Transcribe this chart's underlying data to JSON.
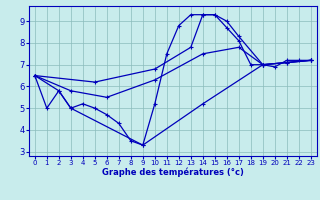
{
  "title": "Graphe des températures (°c)",
  "bg_color": "#c8ecec",
  "grid_color": "#8bbcbc",
  "line_color": "#0000bb",
  "xlim": [
    -0.5,
    23.5
  ],
  "ylim": [
    2.8,
    9.7
  ],
  "yticks": [
    3,
    4,
    5,
    6,
    7,
    8,
    9
  ],
  "xticks": [
    0,
    1,
    2,
    3,
    4,
    5,
    6,
    7,
    8,
    9,
    10,
    11,
    12,
    13,
    14,
    15,
    16,
    17,
    18,
    19,
    20,
    21,
    22,
    23
  ],
  "curve_main_x": [
    0,
    1,
    2,
    3,
    4,
    5,
    6,
    7,
    8,
    9,
    10,
    11,
    12,
    13,
    14,
    15,
    16,
    17,
    18,
    19,
    20,
    21,
    22,
    23
  ],
  "curve_main_y": [
    6.5,
    5.0,
    5.8,
    5.0,
    5.2,
    5.0,
    4.7,
    4.3,
    3.5,
    3.3,
    5.2,
    7.5,
    8.8,
    9.3,
    9.3,
    9.3,
    8.7,
    8.1,
    7.0,
    7.0,
    6.9,
    7.2,
    7.2,
    7.2
  ],
  "curve_low_x": [
    0,
    2,
    3,
    9,
    14,
    19,
    23
  ],
  "curve_low_y": [
    6.5,
    5.8,
    5.0,
    3.3,
    5.2,
    7.0,
    7.2
  ],
  "curve_mid_x": [
    0,
    3,
    6,
    10,
    14,
    17,
    19,
    21,
    23
  ],
  "curve_mid_y": [
    6.5,
    5.8,
    5.5,
    6.3,
    7.5,
    7.8,
    7.0,
    7.1,
    7.2
  ],
  "curve_high_x": [
    0,
    5,
    10,
    13,
    14,
    15,
    16,
    17,
    19,
    21,
    23
  ],
  "curve_high_y": [
    6.5,
    6.2,
    6.8,
    7.8,
    9.3,
    9.3,
    9.0,
    8.3,
    7.0,
    7.1,
    7.2
  ]
}
